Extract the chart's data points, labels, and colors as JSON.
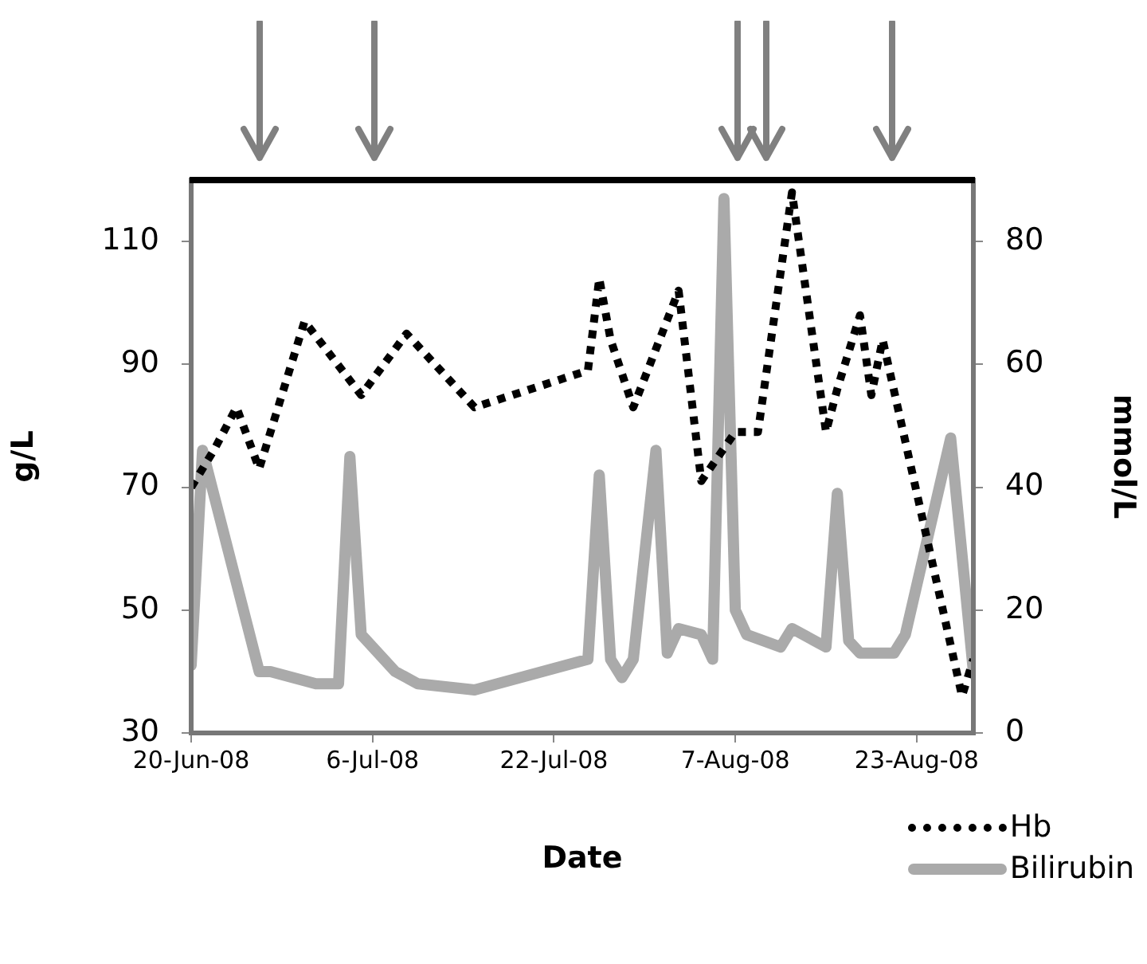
{
  "chart_data": {
    "type": "line",
    "xlabel": "Date",
    "ylabel": "g/L",
    "y2label": "mmol/L",
    "xlim": [
      "2008-06-20",
      "2008-08-28"
    ],
    "xticks": [
      {
        "value": "2008-06-20",
        "label": "20-Jun-08"
      },
      {
        "value": "2008-07-06",
        "label": "6-Jul-08"
      },
      {
        "value": "2008-07-22",
        "label": "22-Jul-08"
      },
      {
        "value": "2008-08-07",
        "label": "7-Aug-08"
      },
      {
        "value": "2008-08-23",
        "label": "23-Aug-08"
      }
    ],
    "ylim": [
      30,
      120
    ],
    "yticks": [
      30,
      50,
      70,
      90,
      110
    ],
    "y2lim": [
      0,
      90
    ],
    "y2ticks": [
      0,
      20,
      40,
      60,
      80
    ],
    "legend": "bottom right",
    "marker": "none",
    "series": [
      {
        "name": "Hb",
        "color": "#000000",
        "line_style": "dotted",
        "x": [
          "2008-06-20",
          "2008-06-22",
          "2008-06-24",
          "2008-06-26",
          "2008-06-30",
          "2008-07-05",
          "2008-07-09",
          "2008-07-15",
          "2008-07-25",
          "2008-07-26",
          "2008-07-27",
          "2008-07-29",
          "2008-08-02",
          "2008-08-04",
          "2008-08-07",
          "2008-08-09",
          "2008-08-12",
          "2008-08-15",
          "2008-08-16",
          "2008-08-18",
          "2008-08-19",
          "2008-08-20",
          "2008-08-27",
          "2008-08-28"
        ],
        "values": [
          70,
          76,
          83,
          73,
          97,
          85,
          95,
          83,
          89,
          104,
          94,
          83,
          102,
          71,
          79,
          79,
          118,
          79,
          86,
          98,
          85,
          94,
          36,
          42
        ]
      },
      {
        "name": "Bilirubin",
        "color": "#aaaaaa",
        "line_style": "solid",
        "axis": "y2",
        "x": [
          "2008-06-20",
          "2008-06-21",
          "2008-06-26",
          "2008-06-27",
          "2008-07-01",
          "2008-07-03",
          "2008-07-04",
          "2008-07-05",
          "2008-07-08",
          "2008-07-10",
          "2008-07-15",
          "2008-07-25",
          "2008-07-26",
          "2008-07-27",
          "2008-07-28",
          "2008-07-29",
          "2008-07-31",
          "2008-08-01",
          "2008-08-02",
          "2008-08-04",
          "2008-08-05",
          "2008-08-06",
          "2008-08-07",
          "2008-08-08",
          "2008-08-11",
          "2008-08-12",
          "2008-08-15",
          "2008-08-16",
          "2008-08-17",
          "2008-08-18",
          "2008-08-21",
          "2008-08-22",
          "2008-08-26",
          "2008-08-28"
        ],
        "values": [
          11,
          46,
          10,
          10,
          8,
          8,
          45,
          16,
          10,
          8,
          7,
          12,
          42,
          12,
          9,
          12,
          46,
          13,
          17,
          16,
          12,
          87,
          20,
          16,
          14,
          17,
          14,
          39,
          15,
          13,
          13,
          16,
          48,
          10
        ]
      }
    ]
  }
}
